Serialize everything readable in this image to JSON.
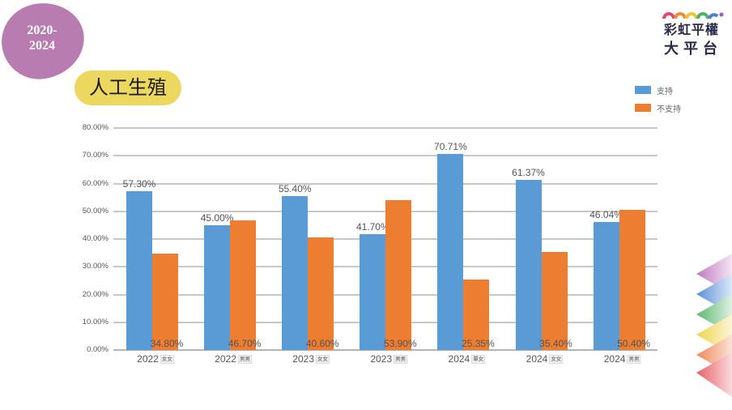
{
  "header": {
    "year_range_line1": "2020-",
    "year_range_line2": "2024",
    "topic_title": "人工生殖",
    "logo_line1": "彩虹平權",
    "logo_line2": "大平台"
  },
  "colors": {
    "support": "#5b9bd5",
    "not_support": "#ed7d31",
    "year_blob": "#b97cb0",
    "title_pill": "#ecd85e",
    "logo_text": "#2a2a4a"
  },
  "legend": {
    "items": [
      {
        "label": "支持",
        "color": "#5b9bd5"
      },
      {
        "label": "不支持",
        "color": "#ed7d31"
      }
    ]
  },
  "chart_data": {
    "type": "bar",
    "title": "人工生殖",
    "xlabel": "",
    "ylabel": "",
    "ylim": [
      0,
      0.8
    ],
    "yticks": [
      "0.00%",
      "10.00%",
      "20.00%",
      "30.00%",
      "40.00%",
      "50.00%",
      "60.00%",
      "70.00%",
      "80.00%"
    ],
    "grid": true,
    "legend_position": "top-right",
    "categories": [
      {
        "year": "2022",
        "sub": "女女"
      },
      {
        "year": "2022",
        "sub": "男男"
      },
      {
        "year": "2023",
        "sub": "女女"
      },
      {
        "year": "2023",
        "sub": "男男"
      },
      {
        "year": "2024",
        "sub": "單女"
      },
      {
        "year": "2024",
        "sub": "女女"
      },
      {
        "year": "2024",
        "sub": "男男"
      }
    ],
    "series": [
      {
        "name": "支持",
        "values": [
          57.3,
          45.0,
          55.4,
          41.7,
          70.71,
          61.37,
          46.04
        ],
        "labels": [
          "57.30%",
          "45.00%",
          "55.40%",
          "41.70%",
          "70.71%",
          "61.37%",
          "46.04%"
        ]
      },
      {
        "name": "不支持",
        "values": [
          34.8,
          46.7,
          40.6,
          53.9,
          25.35,
          35.4,
          50.4
        ],
        "labels": [
          "34.80%",
          "46.70%",
          "40.60%",
          "53.90%",
          "25.35%",
          "35.40%",
          "50.40%"
        ]
      }
    ]
  }
}
